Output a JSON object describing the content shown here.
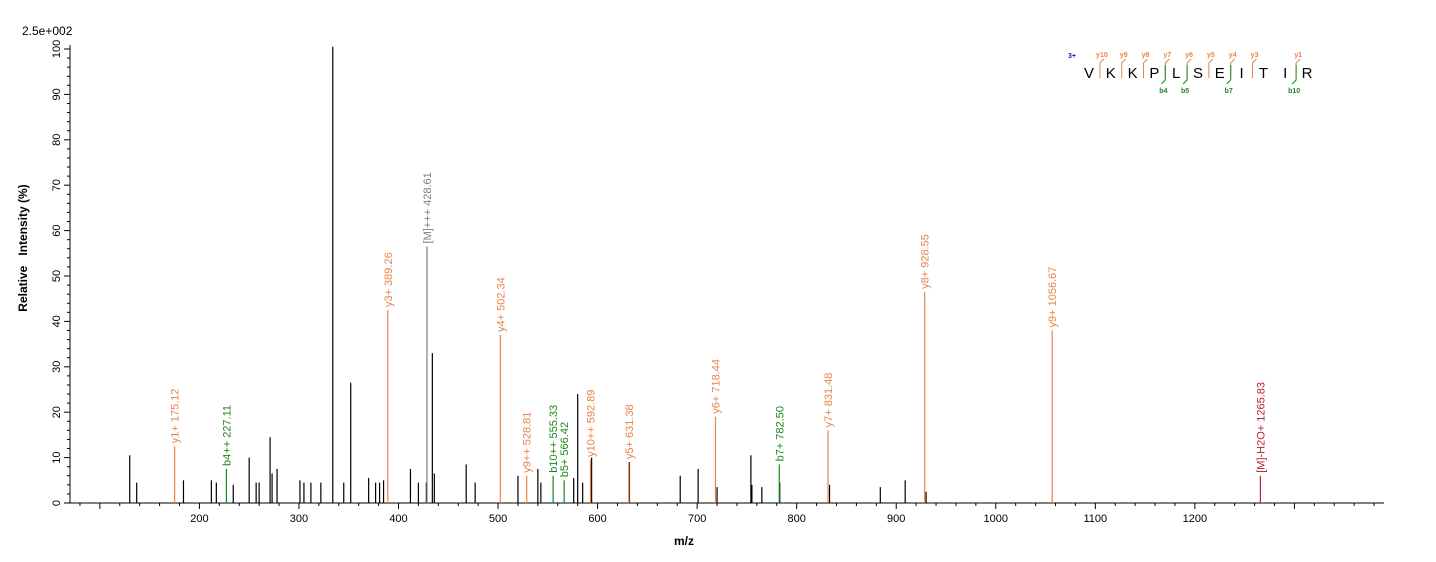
{
  "chart_data": {
    "type": "bar",
    "intensity_scale": "2.5e+002",
    "xlabel": "m/z",
    "ylabel": "Relative   Intensity (%)",
    "xlim": [
      70,
      1390
    ],
    "ylim": [
      0,
      100
    ],
    "xticks": [
      200,
      300,
      400,
      500,
      600,
      700,
      800,
      900,
      1000,
      1100,
      1200
    ],
    "yticks": [
      0,
      10,
      20,
      30,
      40,
      50,
      60,
      70,
      80,
      90,
      100
    ],
    "colors": {
      "unassigned": "#000000",
      "y_ion": "#e8844a",
      "b_ion": "#1a8a1a",
      "precursor": "#7a8088",
      "neutral_loss": "#c0203a",
      "charge": "#1a1aa8"
    },
    "unlabeled_peaks": [
      {
        "mz": 130,
        "intensity": 10.5
      },
      {
        "mz": 137,
        "intensity": 4.5
      },
      {
        "mz": 184,
        "intensity": 5
      },
      {
        "mz": 212,
        "intensity": 5
      },
      {
        "mz": 217,
        "intensity": 4.5
      },
      {
        "mz": 234,
        "intensity": 4
      },
      {
        "mz": 250,
        "intensity": 10
      },
      {
        "mz": 257,
        "intensity": 4.5
      },
      {
        "mz": 260,
        "intensity": 4.5
      },
      {
        "mz": 271,
        "intensity": 14.5
      },
      {
        "mz": 273,
        "intensity": 6.5
      },
      {
        "mz": 278,
        "intensity": 7.5
      },
      {
        "mz": 301,
        "intensity": 5
      },
      {
        "mz": 305,
        "intensity": 4.5
      },
      {
        "mz": 312,
        "intensity": 4.5
      },
      {
        "mz": 322,
        "intensity": 4.5
      },
      {
        "mz": 334,
        "intensity": 100.5
      },
      {
        "mz": 345,
        "intensity": 4.5
      },
      {
        "mz": 352,
        "intensity": 26.5
      },
      {
        "mz": 370,
        "intensity": 5.5
      },
      {
        "mz": 377,
        "intensity": 4.5
      },
      {
        "mz": 381,
        "intensity": 4.5
      },
      {
        "mz": 385,
        "intensity": 5
      },
      {
        "mz": 412,
        "intensity": 7.5
      },
      {
        "mz": 420,
        "intensity": 4.5
      },
      {
        "mz": 428,
        "intensity": 4.5
      },
      {
        "mz": 434,
        "intensity": 33
      },
      {
        "mz": 436,
        "intensity": 6.5
      },
      {
        "mz": 468,
        "intensity": 8.5
      },
      {
        "mz": 477,
        "intensity": 4.5
      },
      {
        "mz": 520,
        "intensity": 6
      },
      {
        "mz": 540,
        "intensity": 7.5
      },
      {
        "mz": 543,
        "intensity": 4.5
      },
      {
        "mz": 576,
        "intensity": 5.5
      },
      {
        "mz": 580,
        "intensity": 24
      },
      {
        "mz": 585,
        "intensity": 4.5
      },
      {
        "mz": 594,
        "intensity": 10
      },
      {
        "mz": 632,
        "intensity": 9
      },
      {
        "mz": 683,
        "intensity": 6
      },
      {
        "mz": 701,
        "intensity": 7.5
      },
      {
        "mz": 720,
        "intensity": 3.5
      },
      {
        "mz": 754,
        "intensity": 10.5
      },
      {
        "mz": 755,
        "intensity": 4
      },
      {
        "mz": 765,
        "intensity": 3.5
      },
      {
        "mz": 783,
        "intensity": 4.5
      },
      {
        "mz": 833,
        "intensity": 4
      },
      {
        "mz": 884,
        "intensity": 3.5
      },
      {
        "mz": 909,
        "intensity": 5
      },
      {
        "mz": 930,
        "intensity": 2.5
      }
    ],
    "annotated_peaks": [
      {
        "mz": 175.12,
        "intensity": 12.5,
        "label": "y1+ 175.12",
        "ion": "y_ion"
      },
      {
        "mz": 227.11,
        "intensity": 7.5,
        "label": "b4++ 227.11",
        "ion": "b_ion"
      },
      {
        "mz": 389.26,
        "intensity": 42.5,
        "label": "y3+ 389.26",
        "ion": "y_ion"
      },
      {
        "mz": 428.61,
        "intensity": 56.5,
        "label": "[M]+++ 428.61",
        "ion": "precursor"
      },
      {
        "mz": 502.34,
        "intensity": 37,
        "label": "y4+ 502.34",
        "ion": "y_ion"
      },
      {
        "mz": 528.81,
        "intensity": 6,
        "label": "y9++ 528.81",
        "ion": "y_ion"
      },
      {
        "mz": 555.33,
        "intensity": 6,
        "label": "b10++ 555.33",
        "ion": "b_ion"
      },
      {
        "mz": 566.42,
        "intensity": 5,
        "label": "b5+ 566.42",
        "ion": "b_ion"
      },
      {
        "mz": 592.89,
        "intensity": 9.5,
        "label": "y10++ 592.89",
        "ion": "y_ion"
      },
      {
        "mz": 631.38,
        "intensity": 9,
        "label": "y5+ 631.38",
        "ion": "y_ion"
      },
      {
        "mz": 718.44,
        "intensity": 19,
        "label": "y6+ 718.44",
        "ion": "y_ion"
      },
      {
        "mz": 782.5,
        "intensity": 8.5,
        "label": "b7+ 782.50",
        "ion": "b_ion"
      },
      {
        "mz": 831.48,
        "intensity": 16,
        "label": "y7+ 831.48",
        "ion": "y_ion"
      },
      {
        "mz": 928.55,
        "intensity": 46.5,
        "label": "y8+ 928.55",
        "ion": "y_ion"
      },
      {
        "mz": 1056.67,
        "intensity": 38,
        "label": "y9+ 1056.67",
        "ion": "y_ion"
      },
      {
        "mz": 1265.83,
        "intensity": 6,
        "label": "[M]-H2O+ 1265.83",
        "ion": "neutral_loss"
      }
    ],
    "sequence": {
      "charge": "3+",
      "residues": [
        "V",
        "K",
        "K",
        "P",
        "L",
        "S",
        "E",
        "I",
        "T",
        "I",
        "R"
      ],
      "y_ions": [
        {
          "label": "y10",
          "after": 0
        },
        {
          "label": "y9",
          "after": 1
        },
        {
          "label": "y8",
          "after": 2
        },
        {
          "label": "y7",
          "after": 3
        },
        {
          "label": "y6",
          "after": 4
        },
        {
          "label": "y5",
          "after": 5
        },
        {
          "label": "y4",
          "after": 6
        },
        {
          "label": "y3",
          "after": 7
        },
        {
          "label": "y1",
          "after": 9
        }
      ],
      "b_ions": [
        {
          "label": "b4",
          "after": 3
        },
        {
          "label": "b5",
          "after": 4
        },
        {
          "label": "b7",
          "after": 6
        },
        {
          "label": "b10",
          "after": 9
        }
      ]
    }
  }
}
